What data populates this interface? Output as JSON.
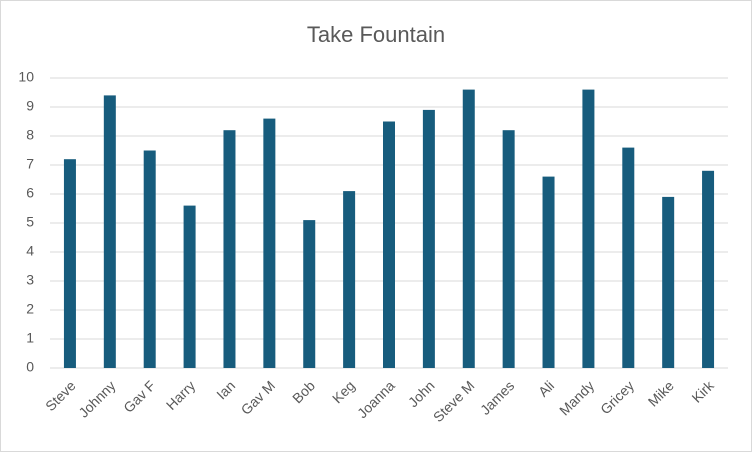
{
  "chart_data": {
    "type": "bar",
    "title": "Take Fountain",
    "categories": [
      "Steve",
      "Johnny",
      "Gav F",
      "Harry",
      "Ian",
      "Gav M",
      "Bob",
      "Keg",
      "Joanna",
      "John",
      "Steve M",
      "James",
      "Ali",
      "Mandy",
      "Gricey",
      "Mike",
      "Kirk"
    ],
    "values": [
      7.2,
      9.4,
      7.5,
      5.6,
      8.2,
      8.6,
      5.1,
      6.1,
      8.5,
      8.9,
      9.6,
      8.2,
      6.6,
      9.6,
      7.6,
      5.9,
      6.8
    ],
    "color": "#175c7d",
    "ylim": [
      0,
      10
    ],
    "yticks": [
      0,
      1,
      2,
      3,
      4,
      5,
      6,
      7,
      8,
      9,
      10
    ],
    "grid": true
  }
}
